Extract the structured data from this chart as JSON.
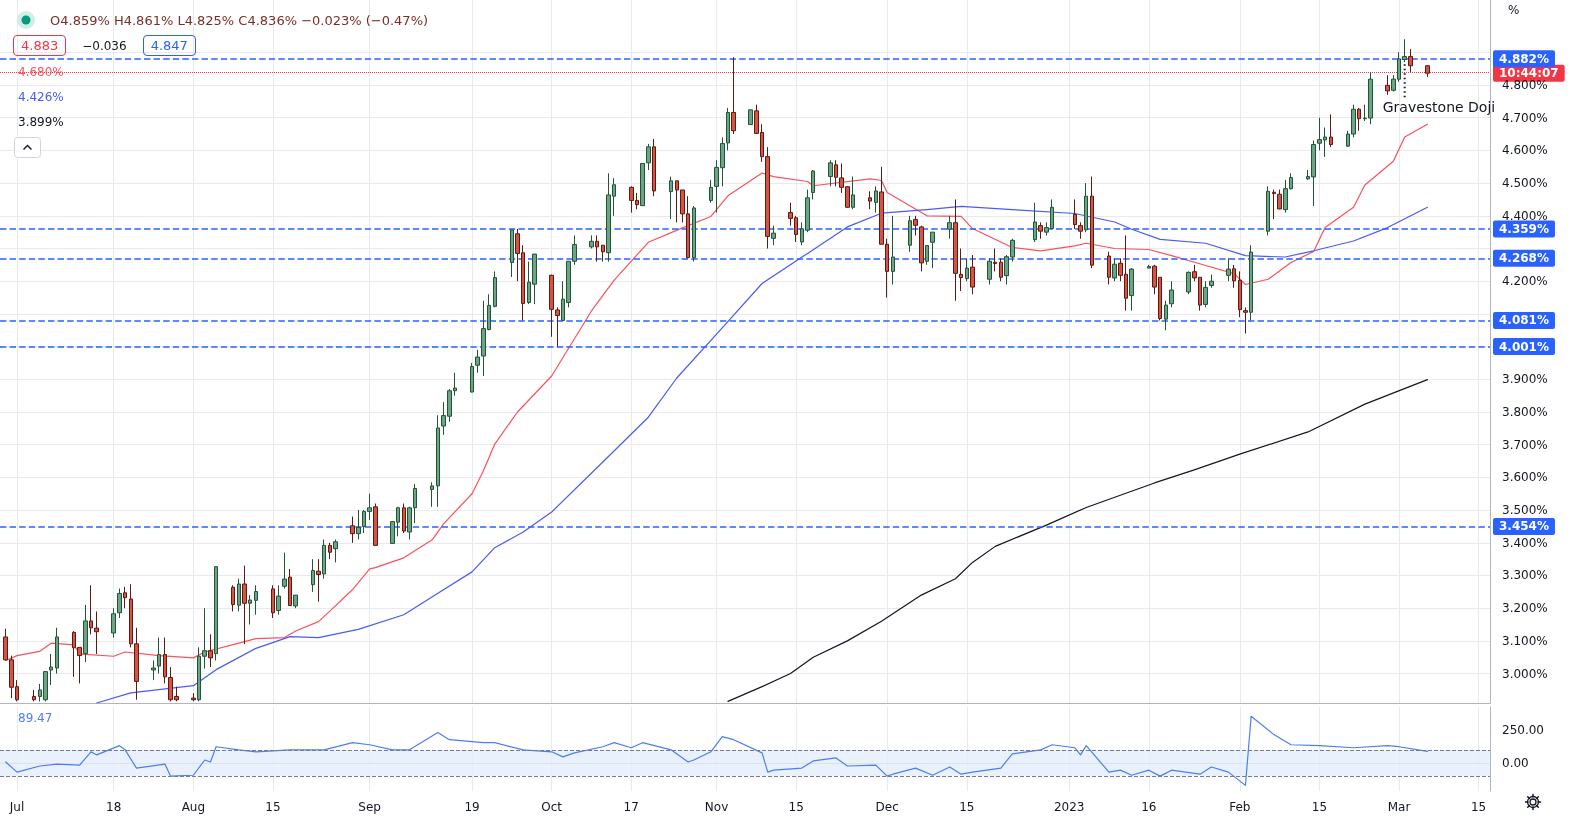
{
  "chart_data": [
    {
      "type": "candlestick",
      "ylabel": "%",
      "tick_labels": "y",
      "grid": true,
      "marker": "none",
      "xlim": [
        "2022-06-28",
        "2023-03-17"
      ],
      "ylim": [
        2.91,
        5.06
      ],
      "xticks": [
        {
          "value": "2022-07-01",
          "label": null
        },
        {
          "value": "2022-07-18",
          "label": null
        },
        {
          "value": "2022-08-01",
          "label": null
        },
        {
          "value": "2022-08-15",
          "label": null
        },
        {
          "value": "2022-09-01",
          "label": null
        },
        {
          "value": "2022-09-19",
          "label": null
        },
        {
          "value": "2022-10-03",
          "label": null
        },
        {
          "value": "2022-10-17",
          "label": null
        },
        {
          "value": "2022-11-01",
          "label": null
        },
        {
          "value": "2022-11-15",
          "label": null
        },
        {
          "value": "2022-12-01",
          "label": null
        },
        {
          "value": "2022-12-15",
          "label": null
        },
        {
          "value": "2023-01-02",
          "label": null
        },
        {
          "value": "2023-01-16",
          "label": null
        },
        {
          "value": "2023-02-01",
          "label": null
        },
        {
          "value": "2023-02-15",
          "label": null
        },
        {
          "value": "2023-03-01",
          "label": null
        },
        {
          "value": "2023-03-15",
          "label": null
        }
      ],
      "yticks": [
        {
          "value": 3.0,
          "label": "3.000%"
        },
        {
          "value": 3.1,
          "label": "3.100%"
        },
        {
          "value": 3.2,
          "label": "3.200%"
        },
        {
          "value": 3.3,
          "label": "3.300%"
        },
        {
          "value": 3.4,
          "label": "3.400%"
        },
        {
          "value": 3.5,
          "label": "3.500%"
        },
        {
          "value": 3.6,
          "label": "3.600%"
        },
        {
          "value": 3.7,
          "label": "3.700%"
        },
        {
          "value": 3.8,
          "label": "3.800%"
        },
        {
          "value": 3.9,
          "label": "3.900%"
        },
        {
          "value": 4.0,
          "label": null
        },
        {
          "value": 4.1,
          "label": null
        },
        {
          "value": 4.2,
          "label": "4.200%"
        },
        {
          "value": 4.3,
          "label": null
        },
        {
          "value": 4.4,
          "label": "4.400%"
        },
        {
          "value": 4.5,
          "label": "4.500%"
        },
        {
          "value": 4.6,
          "label": "4.600%"
        },
        {
          "value": 4.7,
          "label": "4.700%"
        },
        {
          "value": 4.8,
          "label": "4.800%"
        },
        {
          "value": 4.9,
          "label": null
        }
      ],
      "x": [
        "2022-06-29",
        "2022-06-30",
        "2022-07-01",
        "2022-07-04",
        "2022-07-05",
        "2022-07-06",
        "2022-07-07",
        "2022-07-08",
        "2022-07-11",
        "2022-07-12",
        "2022-07-13",
        "2022-07-14",
        "2022-07-15",
        "2022-07-18",
        "2022-07-19",
        "2022-07-20",
        "2022-07-21",
        "2022-07-22",
        "2022-07-25",
        "2022-07-26",
        "2022-07-27",
        "2022-07-28",
        "2022-07-29",
        "2022-08-01",
        "2022-08-02",
        "2022-08-03",
        "2022-08-04",
        "2022-08-05",
        "2022-08-08",
        "2022-08-09",
        "2022-08-10",
        "2022-08-11",
        "2022-08-12",
        "2022-08-15",
        "2022-08-16",
        "2022-08-17",
        "2022-08-18",
        "2022-08-19",
        "2022-08-22",
        "2022-08-23",
        "2022-08-24",
        "2022-08-25",
        "2022-08-26",
        "2022-08-29",
        "2022-08-30",
        "2022-08-31",
        "2022-09-01",
        "2022-09-02",
        "2022-09-05",
        "2022-09-06",
        "2022-09-07",
        "2022-09-08",
        "2022-09-09",
        "2022-09-12",
        "2022-09-13",
        "2022-09-14",
        "2022-09-15",
        "2022-09-16",
        "2022-09-19",
        "2022-09-20",
        "2022-09-21",
        "2022-09-22",
        "2022-09-23",
        "2022-09-26",
        "2022-09-27",
        "2022-09-28",
        "2022-09-29",
        "2022-09-30",
        "2022-10-03",
        "2022-10-04",
        "2022-10-05",
        "2022-10-06",
        "2022-10-07",
        "2022-10-10",
        "2022-10-11",
        "2022-10-12",
        "2022-10-13",
        "2022-10-14",
        "2022-10-17",
        "2022-10-18",
        "2022-10-19",
        "2022-10-20",
        "2022-10-21",
        "2022-10-24",
        "2022-10-25",
        "2022-10-26",
        "2022-10-27",
        "2022-10-28",
        "2022-10-31",
        "2022-11-01",
        "2022-11-02",
        "2022-11-03",
        "2022-11-04",
        "2022-11-07",
        "2022-11-08",
        "2022-11-09",
        "2022-11-10",
        "2022-11-11",
        "2022-11-14",
        "2022-11-15",
        "2022-11-16",
        "2022-11-17",
        "2022-11-18",
        "2022-11-21",
        "2022-11-22",
        "2022-11-23",
        "2022-11-24",
        "2022-11-25",
        "2022-11-28",
        "2022-11-29",
        "2022-11-30",
        "2022-12-01",
        "2022-12-02",
        "2022-12-05",
        "2022-12-06",
        "2022-12-07",
        "2022-12-08",
        "2022-12-09",
        "2022-12-12",
        "2022-12-13",
        "2022-12-14",
        "2022-12-15",
        "2022-12-16",
        "2022-12-19",
        "2022-12-20",
        "2022-12-21",
        "2022-12-22",
        "2022-12-23",
        "2022-12-27",
        "2022-12-28",
        "2022-12-29",
        "2022-12-30",
        "2023-01-03",
        "2023-01-04",
        "2023-01-05",
        "2023-01-06",
        "2023-01-09",
        "2023-01-10",
        "2023-01-11",
        "2023-01-12",
        "2023-01-13",
        "2023-01-16",
        "2023-01-17",
        "2023-01-18",
        "2023-01-19",
        "2023-01-20",
        "2023-01-23",
        "2023-01-24",
        "2023-01-25",
        "2023-01-26",
        "2023-01-27",
        "2023-01-30",
        "2023-01-31",
        "2023-02-01",
        "2023-02-02",
        "2023-02-03",
        "2023-02-06",
        "2023-02-07",
        "2023-02-08",
        "2023-02-09",
        "2023-02-10",
        "2023-02-13",
        "2023-02-14",
        "2023-02-15",
        "2023-02-16",
        "2023-02-17",
        "2023-02-20",
        "2023-02-21",
        "2023-02-22",
        "2023-02-23",
        "2023-02-24",
        "2023-02-27",
        "2023-02-28",
        "2023-03-01",
        "2023-03-02",
        "2023-03-03",
        "2023-03-06"
      ],
      "ohlc": [
        [
          3.112,
          3.137,
          3.04,
          3.042
        ],
        [
          3.042,
          3.055,
          2.925,
          2.958
        ],
        [
          2.96,
          2.98,
          2.915,
          2.92
        ],
        [
          2.93,
          2.95,
          2.915,
          2.92
        ],
        [
          2.93,
          2.968,
          2.915,
          2.95
        ],
        [
          2.92,
          3.006,
          2.915,
          3.006
        ],
        [
          3.011,
          3.06,
          2.965,
          3.02
        ],
        [
          3.017,
          3.14,
          3.0,
          3.112
        ],
        [
          3.126,
          3.13,
          2.99,
          3.079
        ],
        [
          3.08,
          3.08,
          2.97,
          3.055
        ],
        [
          3.061,
          3.21,
          3.035,
          3.161
        ],
        [
          3.161,
          3.27,
          3.12,
          3.14
        ],
        [
          3.139,
          3.19,
          3.06,
          3.128
        ],
        [
          3.124,
          3.2,
          3.11,
          3.183
        ],
        [
          3.186,
          3.26,
          3.17,
          3.245
        ],
        [
          3.247,
          3.265,
          3.2,
          3.232
        ],
        [
          3.228,
          3.273,
          3.08,
          3.091
        ],
        [
          3.091,
          3.14,
          2.92,
          2.976
        ],
        [
          3.011,
          3.04,
          2.98,
          3.017
        ],
        [
          3.023,
          3.11,
          3.0,
          3.058
        ],
        [
          3.058,
          3.11,
          2.97,
          2.99
        ],
        [
          2.988,
          3.02,
          2.915,
          2.92
        ],
        [
          2.93,
          2.96,
          2.915,
          2.92
        ],
        [
          2.925,
          2.94,
          2.915,
          2.92
        ],
        [
          2.92,
          3.08,
          2.915,
          3.053
        ],
        [
          3.053,
          3.2,
          3.015,
          3.07
        ],
        [
          3.07,
          3.12,
          3.02,
          3.048
        ],
        [
          3.061,
          3.327,
          3.04,
          3.327
        ],
        [
          3.264,
          3.27,
          3.19,
          3.211
        ],
        [
          3.209,
          3.29,
          3.19,
          3.274
        ],
        [
          3.274,
          3.33,
          3.09,
          3.215
        ],
        [
          3.215,
          3.24,
          3.15,
          3.225
        ],
        [
          3.224,
          3.27,
          3.18,
          3.251
        ],
        [
          3.259,
          3.27,
          3.17,
          3.186
        ],
        [
          3.193,
          3.27,
          3.18,
          3.237
        ],
        [
          3.267,
          3.37,
          3.26,
          3.289
        ],
        [
          3.295,
          3.32,
          3.208,
          3.208
        ],
        [
          3.207,
          3.24,
          3.2,
          3.24
        ],
        [
          3.272,
          3.35,
          3.25,
          3.315
        ],
        [
          3.313,
          3.35,
          3.22,
          3.303
        ],
        [
          3.305,
          3.41,
          3.29,
          3.392
        ],
        [
          3.392,
          3.4,
          3.35,
          3.371
        ],
        [
          3.382,
          3.41,
          3.34,
          3.403
        ],
        [
          3.452,
          3.48,
          3.4,
          3.428
        ],
        [
          3.428,
          3.5,
          3.41,
          3.447
        ],
        [
          3.45,
          3.5,
          3.43,
          3.496
        ],
        [
          3.496,
          3.55,
          3.47,
          3.507
        ],
        [
          3.51,
          3.52,
          3.392,
          3.392
        ],
        [
          3.398,
          3.465,
          3.398,
          3.465
        ],
        [
          3.463,
          3.51,
          3.42,
          3.507
        ],
        [
          3.507,
          3.52,
          3.43,
          3.436
        ],
        [
          3.433,
          3.51,
          3.41,
          3.507
        ],
        [
          3.507,
          3.58,
          3.46,
          3.566
        ],
        [
          3.563,
          3.585,
          3.51,
          3.574
        ],
        [
          3.574,
          3.79,
          3.51,
          3.751
        ],
        [
          3.757,
          3.83,
          3.73,
          3.789
        ],
        [
          3.787,
          3.87,
          3.77,
          3.865
        ],
        [
          3.865,
          3.92,
          3.85,
          3.873
        ],
        [
          3.861,
          3.95,
          3.86,
          3.939
        ],
        [
          3.943,
          3.99,
          3.92,
          3.968
        ],
        [
          3.971,
          4.14,
          3.91,
          4.055
        ],
        [
          4.052,
          4.16,
          4.05,
          4.126
        ],
        [
          4.123,
          4.23,
          4.12,
          4.211
        ],
        [
          4.257,
          4.357,
          4.213,
          4.357
        ],
        [
          4.345,
          4.36,
          4.2,
          4.285
        ],
        [
          4.287,
          4.31,
          4.08,
          4.132
        ],
        [
          4.135,
          4.26,
          4.13,
          4.197
        ],
        [
          4.191,
          4.283,
          4.13,
          4.283
        ],
        [
          4.218,
          4.22,
          4.03,
          4.114
        ],
        [
          4.112,
          4.12,
          4.0,
          4.095
        ],
        [
          4.08,
          4.2,
          4.08,
          4.145
        ],
        [
          4.135,
          4.261,
          4.12,
          4.261
        ],
        [
          4.261,
          4.34,
          4.25,
          4.312
        ],
        [
          4.305,
          4.34,
          4.3,
          4.322
        ],
        [
          4.322,
          4.34,
          4.26,
          4.305
        ],
        [
          4.31,
          4.31,
          4.26,
          4.29
        ],
        [
          4.287,
          4.53,
          4.26,
          4.464
        ],
        [
          4.46,
          4.515,
          4.4,
          4.495
        ],
        [
          4.487,
          4.49,
          4.41,
          4.447
        ],
        [
          4.447,
          4.47,
          4.42,
          4.434
        ],
        [
          4.431,
          4.56,
          4.43,
          4.56
        ],
        [
          4.562,
          4.62,
          4.54,
          4.611
        ],
        [
          4.611,
          4.635,
          4.46,
          4.476
        ],
        [
          4.474,
          4.52,
          4.39,
          4.507
        ],
        [
          4.507,
          4.507,
          4.38,
          4.479
        ],
        [
          4.479,
          4.479,
          4.38,
          4.406
        ],
        [
          4.406,
          4.46,
          4.27,
          4.272
        ],
        [
          4.272,
          4.43,
          4.26,
          4.424
        ],
        [
          4.447,
          4.51,
          4.44,
          4.487
        ],
        [
          4.49,
          4.57,
          4.41,
          4.548
        ],
        [
          4.547,
          4.64,
          4.49,
          4.621
        ],
        [
          4.623,
          4.73,
          4.6,
          4.716
        ],
        [
          4.716,
          4.885,
          4.65,
          4.66
        ],
        [
          4.679,
          4.724,
          4.678,
          4.724
        ],
        [
          4.721,
          4.74,
          4.652,
          4.652
        ],
        [
          4.655,
          4.68,
          4.565,
          4.581
        ],
        [
          4.581,
          4.61,
          4.3,
          4.337
        ],
        [
          4.331,
          4.37,
          4.31,
          4.347
        ],
        [
          4.41,
          4.44,
          4.37,
          4.392
        ],
        [
          4.394,
          4.4,
          4.32,
          4.343
        ],
        [
          4.32,
          4.38,
          4.31,
          4.36
        ],
        [
          4.356,
          4.48,
          4.35,
          4.455
        ],
        [
          4.471,
          4.54,
          4.45,
          4.537
        ],
        [
          4.52,
          4.57,
          4.49,
          4.562
        ],
        [
          4.556,
          4.57,
          4.49,
          4.518
        ],
        [
          4.516,
          4.56,
          4.47,
          4.487
        ],
        [
          4.489,
          4.49,
          4.426,
          4.426
        ],
        [
          4.426,
          4.52,
          4.42,
          4.464
        ],
        [
          4.455,
          4.475,
          4.42,
          4.445
        ],
        [
          4.441,
          4.49,
          4.41,
          4.476
        ],
        [
          4.473,
          4.55,
          4.313,
          4.313
        ],
        [
          4.313,
          4.33,
          4.15,
          4.23
        ],
        [
          4.23,
          4.4,
          4.19,
          4.274
        ],
        [
          4.31,
          4.4,
          4.29,
          4.385
        ],
        [
          4.389,
          4.4,
          4.34,
          4.371
        ],
        [
          4.366,
          4.37,
          4.23,
          4.256
        ],
        [
          4.261,
          4.31,
          4.25,
          4.309
        ],
        [
          4.319,
          4.35,
          4.24,
          4.35
        ],
        [
          4.359,
          4.4,
          4.33,
          4.379
        ],
        [
          4.379,
          4.45,
          4.14,
          4.224
        ],
        [
          4.221,
          4.3,
          4.17,
          4.211
        ],
        [
          4.208,
          4.27,
          4.2,
          4.24
        ],
        [
          4.243,
          4.28,
          4.16,
          4.182
        ],
        [
          4.206,
          4.27,
          4.19,
          4.261
        ],
        [
          4.258,
          4.3,
          4.23,
          4.254
        ],
        [
          4.258,
          4.27,
          4.2,
          4.212
        ],
        [
          4.217,
          4.28,
          4.19,
          4.275
        ],
        [
          4.274,
          4.33,
          4.26,
          4.325
        ],
        [
          4.327,
          4.44,
          4.32,
          4.381
        ],
        [
          4.37,
          4.38,
          4.33,
          4.353
        ],
        [
          4.35,
          4.38,
          4.34,
          4.364
        ],
        [
          4.361,
          4.45,
          4.36,
          4.426
        ],
        [
          4.404,
          4.45,
          4.36,
          4.373
        ],
        [
          4.37,
          4.38,
          4.33,
          4.353
        ],
        [
          4.357,
          4.5,
          4.35,
          4.46
        ],
        [
          4.46,
          4.52,
          4.24,
          4.249
        ],
        [
          4.277,
          4.29,
          4.19,
          4.212
        ],
        [
          4.21,
          4.27,
          4.2,
          4.252
        ],
        [
          4.255,
          4.27,
          4.2,
          4.218
        ],
        [
          4.221,
          4.34,
          4.11,
          4.148
        ],
        [
          4.156,
          4.24,
          4.11,
          4.237
        ],
        [
          4.24,
          4.25,
          4.24,
          4.245
        ],
        [
          4.246,
          4.25,
          4.16,
          4.182
        ],
        [
          4.212,
          4.212,
          4.08,
          4.086
        ],
        [
          4.084,
          4.14,
          4.05,
          4.127
        ],
        [
          4.131,
          4.2,
          4.12,
          4.173
        ],
        [
          4.167,
          4.23,
          4.16,
          4.227
        ],
        [
          4.229,
          4.25,
          4.2,
          4.21
        ],
        [
          4.212,
          4.212,
          4.11,
          4.127
        ],
        [
          4.129,
          4.2,
          4.12,
          4.181
        ],
        [
          4.187,
          4.22,
          4.18,
          4.2
        ],
        [
          4.218,
          4.27,
          4.2,
          4.237
        ],
        [
          4.238,
          4.25,
          4.18,
          4.201
        ],
        [
          4.203,
          4.23,
          4.09,
          4.113
        ],
        [
          4.11,
          4.12,
          4.04,
          4.105
        ],
        [
          4.105,
          4.31,
          4.08,
          4.289
        ],
        [
          4.353,
          4.49,
          4.34,
          4.475
        ],
        [
          4.472,
          4.48,
          4.39,
          4.468
        ],
        [
          4.466,
          4.48,
          4.42,
          4.421
        ],
        [
          4.419,
          4.51,
          4.41,
          4.483
        ],
        [
          4.483,
          4.53,
          4.48,
          4.517
        ],
        [
          4.513,
          4.54,
          4.51,
          4.52
        ],
        [
          4.519,
          4.63,
          4.43,
          4.618
        ],
        [
          4.622,
          4.7,
          4.6,
          4.633
        ],
        [
          4.632,
          4.67,
          4.58,
          4.641
        ],
        [
          4.641,
          4.71,
          4.61,
          4.618
        ],
        [
          4.613,
          4.66,
          4.61,
          4.65
        ],
        [
          4.65,
          4.74,
          4.64,
          4.726
        ],
        [
          4.726,
          4.73,
          4.66,
          4.697
        ],
        [
          4.697,
          4.74,
          4.69,
          4.699
        ],
        [
          4.699,
          4.84,
          4.68,
          4.818
        ],
        [
          4.799,
          4.83,
          4.77,
          4.782
        ],
        [
          4.784,
          4.83,
          4.78,
          4.818
        ],
        [
          4.818,
          4.9,
          4.81,
          4.88
        ],
        [
          4.878,
          4.94,
          4.87,
          4.887
        ],
        [
          4.887,
          4.91,
          4.84,
          4.859
        ],
        [
          4.859,
          4.861,
          4.825,
          4.836
        ]
      ],
      "series": [
        {
          "type": "line",
          "color": "#f7525f",
          "x": [
            "2022-06-29",
            "2022-07-01",
            "2022-07-05",
            "2022-07-07",
            "2022-07-11",
            "2022-07-12",
            "2022-07-13",
            "2022-07-18",
            "2022-07-20",
            "2022-07-26",
            "2022-08-01",
            "2022-08-03",
            "2022-08-09",
            "2022-08-12",
            "2022-08-17",
            "2022-08-19",
            "2022-08-23",
            "2022-08-25",
            "2022-08-29",
            "2022-09-01",
            "2022-09-02",
            "2022-09-07",
            "2022-09-12",
            "2022-09-14",
            "2022-09-19",
            "2022-09-21",
            "2022-09-23",
            "2022-09-27",
            "2022-10-03",
            "2022-10-10",
            "2022-10-14",
            "2022-10-20",
            "2022-10-26",
            "2022-10-31",
            "2022-11-03",
            "2022-11-09",
            "2022-11-11",
            "2022-11-17",
            "2022-11-18",
            "2022-11-28",
            "2022-11-30",
            "2022-12-01",
            "2022-12-08",
            "2022-12-14",
            "2022-12-16",
            "2022-12-23",
            "2022-12-28",
            "2023-01-03",
            "2023-01-05",
            "2023-01-10",
            "2023-01-16",
            "2023-01-20",
            "2023-01-26",
            "2023-01-31",
            "2023-02-02",
            "2023-02-06",
            "2023-02-10",
            "2023-02-14",
            "2023-02-16",
            "2023-02-21",
            "2023-02-23",
            "2023-02-28",
            "2023-03-02",
            "2023-03-06"
          ],
          "values": [
            3.04,
            3.055,
            3.068,
            3.093,
            3.088,
            3.06,
            3.059,
            3.053,
            3.066,
            3.055,
            3.048,
            3.066,
            3.093,
            3.107,
            3.11,
            3.13,
            3.159,
            3.191,
            3.257,
            3.32,
            3.324,
            3.354,
            3.409,
            3.458,
            3.55,
            3.62,
            3.702,
            3.8,
            3.91,
            4.109,
            4.203,
            4.319,
            4.363,
            4.398,
            4.461,
            4.531,
            4.52,
            4.505,
            4.492,
            4.513,
            4.508,
            4.471,
            4.4,
            4.398,
            4.361,
            4.303,
            4.293,
            4.308,
            4.316,
            4.3,
            4.297,
            4.278,
            4.248,
            4.223,
            4.19,
            4.206,
            4.257,
            4.291,
            4.364,
            4.426,
            4.494,
            4.567,
            4.641,
            4.68
          ]
        },
        {
          "type": "line",
          "color": "#4b5bf2",
          "x": [
            "2022-07-15",
            "2022-07-21",
            "2022-08-01",
            "2022-08-05",
            "2022-08-12",
            "2022-08-18",
            "2022-08-23",
            "2022-08-30",
            "2022-09-07",
            "2022-09-13",
            "2022-09-19",
            "2022-09-23",
            "2022-09-28",
            "2022-10-03",
            "2022-10-12",
            "2022-10-20",
            "2022-10-25",
            "2022-11-02",
            "2022-11-09",
            "2022-11-17",
            "2022-11-24",
            "2022-11-30",
            "2022-12-08",
            "2022-12-14",
            "2022-12-23",
            "2023-01-03",
            "2023-01-10",
            "2023-01-13",
            "2023-01-18",
            "2023-01-26",
            "2023-02-02",
            "2023-02-09",
            "2023-02-14",
            "2023-02-21",
            "2023-02-27",
            "2023-03-06"
          ],
          "values": [
            2.91,
            2.941,
            2.963,
            3.012,
            3.077,
            3.113,
            3.11,
            3.135,
            3.18,
            3.246,
            3.311,
            3.385,
            3.433,
            3.494,
            3.647,
            3.784,
            3.904,
            4.057,
            4.193,
            4.285,
            4.366,
            4.408,
            4.419,
            4.429,
            4.419,
            4.407,
            4.381,
            4.359,
            4.328,
            4.316,
            4.278,
            4.274,
            4.293,
            4.323,
            4.364,
            4.426
          ]
        },
        {
          "type": "line",
          "color": "#131722",
          "x": [
            "2022-11-03",
            "2022-11-09",
            "2022-11-14",
            "2022-11-18",
            "2022-11-24",
            "2022-11-30",
            "2022-12-07",
            "2022-12-13",
            "2022-12-16",
            "2022-12-20",
            "2022-12-29",
            "2023-01-05",
            "2023-01-17",
            "2023-01-24",
            "2023-02-01",
            "2023-02-13",
            "2023-02-23",
            "2023-03-06"
          ],
          "values": [
            2.915,
            2.96,
            3.0,
            3.05,
            3.1,
            3.16,
            3.24,
            3.29,
            3.34,
            3.389,
            3.454,
            3.508,
            3.583,
            3.623,
            3.671,
            3.739,
            3.824,
            3.899
          ]
        }
      ],
      "ref_lines": [
        {
          "axis": "y",
          "value": 4.882,
          "label": "4.882%",
          "color": "#2962ff",
          "line_style": "dashed"
        },
        {
          "axis": "y",
          "value": 4.836,
          "color": "#f23645",
          "line_style": "dotted"
        },
        {
          "axis": "y",
          "value": 4.359,
          "label": "4.359%",
          "color": "#2962ff",
          "line_style": "dashed"
        },
        {
          "axis": "y",
          "value": 4.268,
          "label": "4.268%",
          "color": "#2962ff",
          "line_style": "dashed"
        },
        {
          "axis": "y",
          "value": 4.081,
          "label": "4.081%",
          "color": "#2962ff",
          "line_style": "dashed"
        },
        {
          "axis": "y",
          "value": 4.001,
          "label": "4.001%",
          "color": "#2962ff",
          "line_style": "dashed"
        },
        {
          "axis": "y",
          "value": 3.454,
          "label": "3.454%",
          "color": "#2962ff",
          "line_style": "dashed"
        }
      ],
      "annotations": [
        "O4.859% H4.861% L4.825% C4.836% −0.023% (−0.47%)",
        "4.883",
        "−0.036",
        "4.847",
        "4.680%",
        "4.426%",
        "3.899%",
        {
          "text": "Gravestone Doji",
          "x": "2023-03-02",
          "y": 4.87
        },
        "10:44:07"
      ]
    },
    {
      "type": "line",
      "color": "#4c7ef3",
      "grid": "x",
      "xlim": [
        "2022-06-28",
        "2023-03-17"
      ],
      "ylim": [
        -215,
        430
      ],
      "xticks": [
        {
          "value": "2022-07-01",
          "label": "Jul"
        },
        {
          "value": "2022-07-18",
          "label": "18"
        },
        {
          "value": "2022-08-01",
          "label": "Aug"
        },
        {
          "value": "2022-08-15",
          "label": "15"
        },
        {
          "value": "2022-09-01",
          "label": "Sep"
        },
        {
          "value": "2022-09-19",
          "label": "19"
        },
        {
          "value": "2022-10-03",
          "label": "Oct"
        },
        {
          "value": "2022-10-17",
          "label": "17"
        },
        {
          "value": "2022-11-01",
          "label": "Nov"
        },
        {
          "value": "2022-11-15",
          "label": "15"
        },
        {
          "value": "2022-12-01",
          "label": "Dec"
        },
        {
          "value": "2022-12-15",
          "label": "15"
        },
        {
          "value": "2023-01-02",
          "label": "2023"
        },
        {
          "value": "2023-01-16",
          "label": "16"
        },
        {
          "value": "2023-02-01",
          "label": "Feb"
        },
        {
          "value": "2023-02-15",
          "label": "15"
        },
        {
          "value": "2023-03-01",
          "label": "Mar"
        },
        {
          "value": "2023-03-15",
          "label": "15"
        }
      ],
      "yticks": [
        {
          "value": 0,
          "label": "0.00"
        },
        {
          "value": 250,
          "label": "250.00"
        }
      ],
      "x": [
        "2022-06-29",
        "2022-07-01",
        "2022-07-05",
        "2022-07-08",
        "2022-07-12",
        "2022-07-14",
        "2022-07-15",
        "2022-07-19",
        "2022-07-20",
        "2022-07-22",
        "2022-07-27",
        "2022-07-28",
        "2022-08-01",
        "2022-08-03",
        "2022-08-04",
        "2022-08-05",
        "2022-08-09",
        "2022-08-12",
        "2022-08-18",
        "2022-08-24",
        "2022-08-29",
        "2022-09-01",
        "2022-09-05",
        "2022-09-08",
        "2022-09-13",
        "2022-09-15",
        "2022-09-21",
        "2022-09-23",
        "2022-09-28",
        "2022-10-03",
        "2022-10-05",
        "2022-10-07",
        "2022-10-12",
        "2022-10-14",
        "2022-10-17",
        "2022-10-19",
        "2022-10-24",
        "2022-10-27",
        "2022-10-28",
        "2022-10-31",
        "2022-11-02",
        "2022-11-04",
        "2022-11-09",
        "2022-11-10",
        "2022-11-11",
        "2022-11-16",
        "2022-11-18",
        "2022-11-22",
        "2022-11-24",
        "2022-11-29",
        "2022-12-01",
        "2022-12-02",
        "2022-12-06",
        "2022-12-09",
        "2022-12-12",
        "2022-12-14",
        "2022-12-16",
        "2022-12-21",
        "2022-12-23",
        "2022-12-28",
        "2022-12-30",
        "2023-01-03",
        "2023-01-04",
        "2023-01-05",
        "2023-01-09",
        "2023-01-11",
        "2023-01-13",
        "2023-01-16",
        "2023-01-18",
        "2023-01-20",
        "2023-01-25",
        "2023-01-27",
        "2023-01-30",
        "2023-02-02",
        "2023-02-03",
        "2023-02-07",
        "2023-02-10",
        "2023-02-15",
        "2023-02-21",
        "2023-02-27",
        "2023-03-01",
        "2023-03-06"
      ],
      "values": [
        8,
        -70,
        -23,
        -8,
        -16,
        86,
        62,
        133,
        101,
        -39,
        -8,
        -101,
        -94,
        23,
        8,
        125,
        101,
        86,
        101,
        101,
        156,
        140,
        101,
        101,
        234,
        179,
        156,
        156,
        101,
        86,
        47,
        78,
        125,
        156,
        117,
        156,
        101,
        8,
        23,
        86,
        203,
        179,
        78,
        -70,
        -55,
        -39,
        16,
        39,
        -23,
        -16,
        -101,
        -86,
        -39,
        -94,
        -31,
        -86,
        -70,
        -39,
        70,
        101,
        140,
        117,
        62,
        133,
        -70,
        -55,
        -94,
        -55,
        -101,
        -55,
        -86,
        -31,
        -70,
        -172,
        359,
        218,
        140,
        133,
        117,
        133,
        125,
        89.47
      ],
      "ref_lines": [
        {
          "axis": "y",
          "value": 100,
          "color": "#787b86",
          "line_style": "dashed"
        },
        {
          "axis": "y",
          "value": -100,
          "color": "#787b86",
          "line_style": "dashed"
        }
      ],
      "bands": [
        {
          "axis": "y",
          "from": -100,
          "to": 100,
          "color": "#e3eefb"
        }
      ],
      "annotations": [
        "89.47"
      ]
    }
  ]
}
